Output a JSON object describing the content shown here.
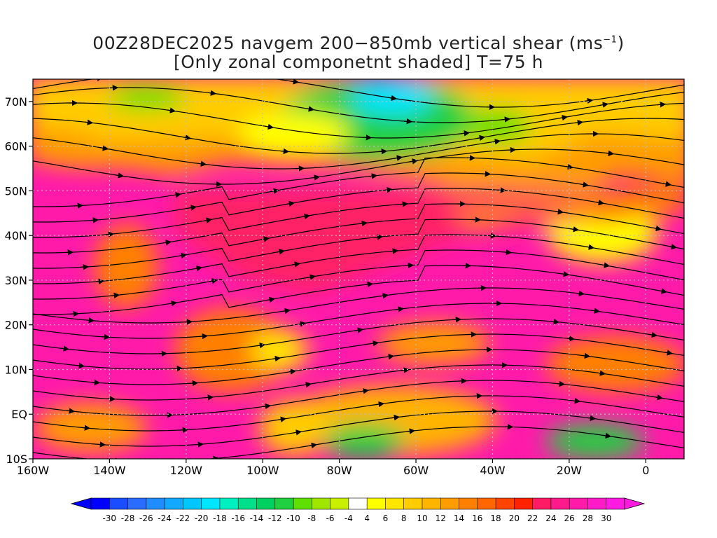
{
  "title": {
    "line1_prefix": "00Z28DEC2025 navgem 200−850mb vertical shear (ms",
    "line1_sup": "−1",
    "line1_suffix": ")",
    "line2": "[Only zonal componetnt shaded] T=75 h"
  },
  "map": {
    "lon_range": [
      -160,
      10
    ],
    "lat_range": [
      -10,
      75
    ],
    "x_ticks": [
      "160W",
      "140W",
      "120W",
      "100W",
      "80W",
      "60W",
      "40W",
      "20W",
      "0"
    ],
    "x_tick_values": [
      -160,
      -140,
      -120,
      -100,
      -80,
      -60,
      -40,
      -20,
      0
    ],
    "y_ticks": [
      "70N",
      "60N",
      "50N",
      "40N",
      "30N",
      "20N",
      "10N",
      "EQ",
      "10S"
    ],
    "y_tick_values": [
      70,
      60,
      50,
      40,
      30,
      20,
      10,
      0,
      -10
    ],
    "gridlines": "dotted",
    "field": "zonal component of 200-850mb vertical shear",
    "overlay": "shear streamlines with arrows",
    "coastline_color": "#000000",
    "contour_color": "#a020c0"
  },
  "colorbar": {
    "labels": [
      "-30",
      "-28",
      "-26",
      "-24",
      "-22",
      "-20",
      "-18",
      "-16",
      "-14",
      "-12",
      "-10",
      "-8",
      "-6",
      "-4",
      "4",
      "6",
      "8",
      "10",
      "12",
      "14",
      "16",
      "18",
      "20",
      "22",
      "24",
      "26",
      "28",
      "30"
    ],
    "colors": [
      "#0000ff",
      "#1a4dff",
      "#2a6cff",
      "#1f8cff",
      "#12a8ff",
      "#00c8ff",
      "#00e6ff",
      "#00f0c0",
      "#00e08a",
      "#00d060",
      "#20d040",
      "#60e000",
      "#a0e600",
      "#c8f000",
      "#ffffff",
      "#ffff00",
      "#ffe600",
      "#ffcc00",
      "#ffb400",
      "#ff9c00",
      "#ff8000",
      "#ff6600",
      "#ff4400",
      "#ff2200",
      "#ff1a66",
      "#ff1a8c",
      "#ff1aaa",
      "#ff1ac8",
      "#ff1ae0"
    ],
    "min_color": "#0000ff",
    "max_color": "#ff1ae0"
  }
}
